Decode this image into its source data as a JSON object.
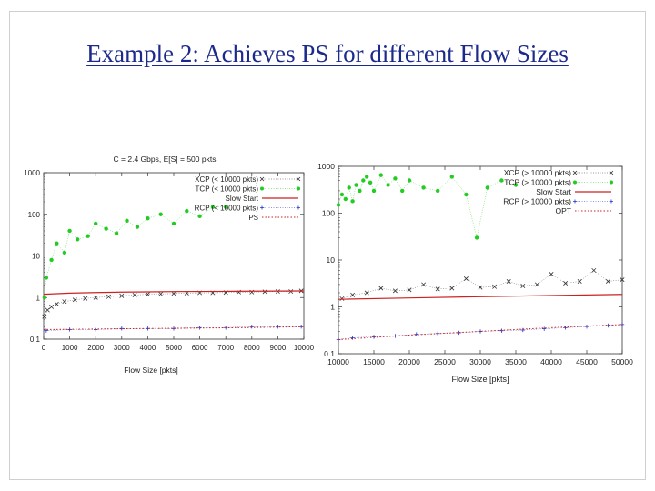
{
  "slide": {
    "title": "Example 2: Achieves PS for different Flow Sizes"
  },
  "chart_data": [
    {
      "type": "scatter",
      "title": "C = 2.4 Gbps, E[S] = 500 pkts",
      "xlabel": "Flow Size [pkts]",
      "ylabel": "",
      "xlim": [
        0,
        10000
      ],
      "ylim": [
        0.1,
        1000
      ],
      "yscale": "log",
      "xticks": [
        "0",
        "1000",
        "2000",
        "3000",
        "4000",
        "5000",
        "6000",
        "7000",
        "8000",
        "9000",
        "10000"
      ],
      "yticks": [
        "0.1",
        "1",
        "10",
        "100",
        "1000"
      ],
      "legend_position": "top-right",
      "series": [
        {
          "name": "XCP (< 10000 pkts)",
          "color": "#333333",
          "marker": "x",
          "x": [
            30,
            150,
            300,
            500,
            800,
            1200,
            1600,
            2000,
            2500,
            3000,
            3500,
            4000,
            4500,
            5000,
            5500,
            6000,
            6500,
            7000,
            7500,
            8000,
            8500,
            9000,
            9500,
            9900
          ],
          "y": [
            0.35,
            0.5,
            0.6,
            0.7,
            0.8,
            0.88,
            0.95,
            1.0,
            1.05,
            1.1,
            1.15,
            1.2,
            1.22,
            1.25,
            1.28,
            1.3,
            1.3,
            1.32,
            1.35,
            1.35,
            1.38,
            1.4,
            1.4,
            1.45
          ]
        },
        {
          "name": "TCP (< 10000 pkts)",
          "color": "#22cc22",
          "marker": "dot",
          "x": [
            30,
            100,
            300,
            500,
            800,
            1000,
            1300,
            1700,
            2000,
            2400,
            2800,
            3200,
            3600,
            4000,
            4500,
            5000,
            5500,
            6000,
            6500,
            7000
          ],
          "y": [
            1,
            3,
            8,
            20,
            12,
            40,
            25,
            30,
            60,
            45,
            35,
            70,
            50,
            80,
            100,
            60,
            120,
            90,
            150,
            150
          ]
        },
        {
          "name": "Slow Start",
          "color": "#cc2222",
          "marker": "line",
          "x": [
            0,
            1000,
            2000,
            3000,
            4000,
            5000,
            6000,
            7000,
            8000,
            9000,
            10000
          ],
          "y": [
            1.2,
            1.28,
            1.32,
            1.35,
            1.37,
            1.39,
            1.4,
            1.41,
            1.42,
            1.43,
            1.44
          ]
        },
        {
          "name": "RCP (< 10000 pkts)",
          "color": "#2233cc",
          "marker": "cross",
          "x": [
            100,
            1000,
            2000,
            3000,
            4000,
            5000,
            6000,
            7000,
            8000,
            9000,
            9900
          ],
          "y": [
            0.16,
            0.17,
            0.17,
            0.18,
            0.18,
            0.18,
            0.19,
            0.19,
            0.2,
            0.2,
            0.2
          ]
        },
        {
          "name": "PS",
          "color": "#cc2222",
          "marker": "dotted",
          "x": [
            0,
            2000,
            4000,
            6000,
            8000,
            10000
          ],
          "y": [
            0.17,
            0.175,
            0.18,
            0.185,
            0.19,
            0.2
          ]
        }
      ]
    },
    {
      "type": "scatter",
      "title": "",
      "xlabel": "Flow Size [pkts]",
      "ylabel": "",
      "xlim": [
        10000,
        50000
      ],
      "ylim": [
        0.1,
        1000
      ],
      "yscale": "log",
      "xticks": [
        "10000",
        "15000",
        "20000",
        "25000",
        "30000",
        "35000",
        "40000",
        "45000",
        "50000"
      ],
      "yticks": [
        "0.1",
        "1",
        "10",
        "100",
        "1000"
      ],
      "legend_position": "top-right",
      "series": [
        {
          "name": "XCP (> 10000 pkts)",
          "color": "#333333",
          "marker": "x",
          "x": [
            10500,
            12000,
            14000,
            16000,
            18000,
            20000,
            22000,
            24000,
            26000,
            28000,
            30000,
            32000,
            34000,
            36000,
            38000,
            40000,
            42000,
            44000,
            46000,
            48000,
            50000
          ],
          "y": [
            1.5,
            1.8,
            2.0,
            2.5,
            2.2,
            2.3,
            3.0,
            2.4,
            2.5,
            4.0,
            2.6,
            2.7,
            3.5,
            2.8,
            3.0,
            5.0,
            3.2,
            3.5,
            6.0,
            3.5,
            3.8
          ]
        },
        {
          "name": "TCP (> 10000 pkts)",
          "color": "#22cc22",
          "marker": "dot",
          "x": [
            10000,
            10500,
            11000,
            11500,
            12000,
            12500,
            13000,
            13500,
            14000,
            14500,
            15000,
            16000,
            17000,
            18000,
            19000,
            20000,
            22000,
            24000,
            26000,
            28000,
            29500,
            31000,
            33000,
            35000
          ],
          "y": [
            150,
            250,
            200,
            350,
            180,
            400,
            300,
            500,
            600,
            450,
            300,
            650,
            400,
            550,
            300,
            500,
            350,
            300,
            600,
            250,
            30,
            350,
            500,
            400
          ]
        },
        {
          "name": "Slow Start",
          "color": "#cc2222",
          "marker": "line",
          "x": [
            10000,
            20000,
            30000,
            40000,
            50000
          ],
          "y": [
            1.45,
            1.55,
            1.65,
            1.75,
            1.85
          ]
        },
        {
          "name": "RCP (> 10000 pkts)",
          "color": "#2233cc",
          "marker": "cross",
          "x": [
            10000,
            12000,
            15000,
            18000,
            21000,
            24000,
            27000,
            30000,
            33000,
            36000,
            39000,
            42000,
            45000,
            48000,
            50000
          ],
          "y": [
            0.2,
            0.22,
            0.23,
            0.24,
            0.26,
            0.27,
            0.28,
            0.3,
            0.31,
            0.32,
            0.34,
            0.36,
            0.38,
            0.4,
            0.42
          ]
        },
        {
          "name": "OPT",
          "color": "#cc2222",
          "marker": "dotted",
          "x": [
            10000,
            20000,
            30000,
            40000,
            50000
          ],
          "y": [
            0.2,
            0.25,
            0.3,
            0.36,
            0.42
          ]
        }
      ]
    }
  ]
}
